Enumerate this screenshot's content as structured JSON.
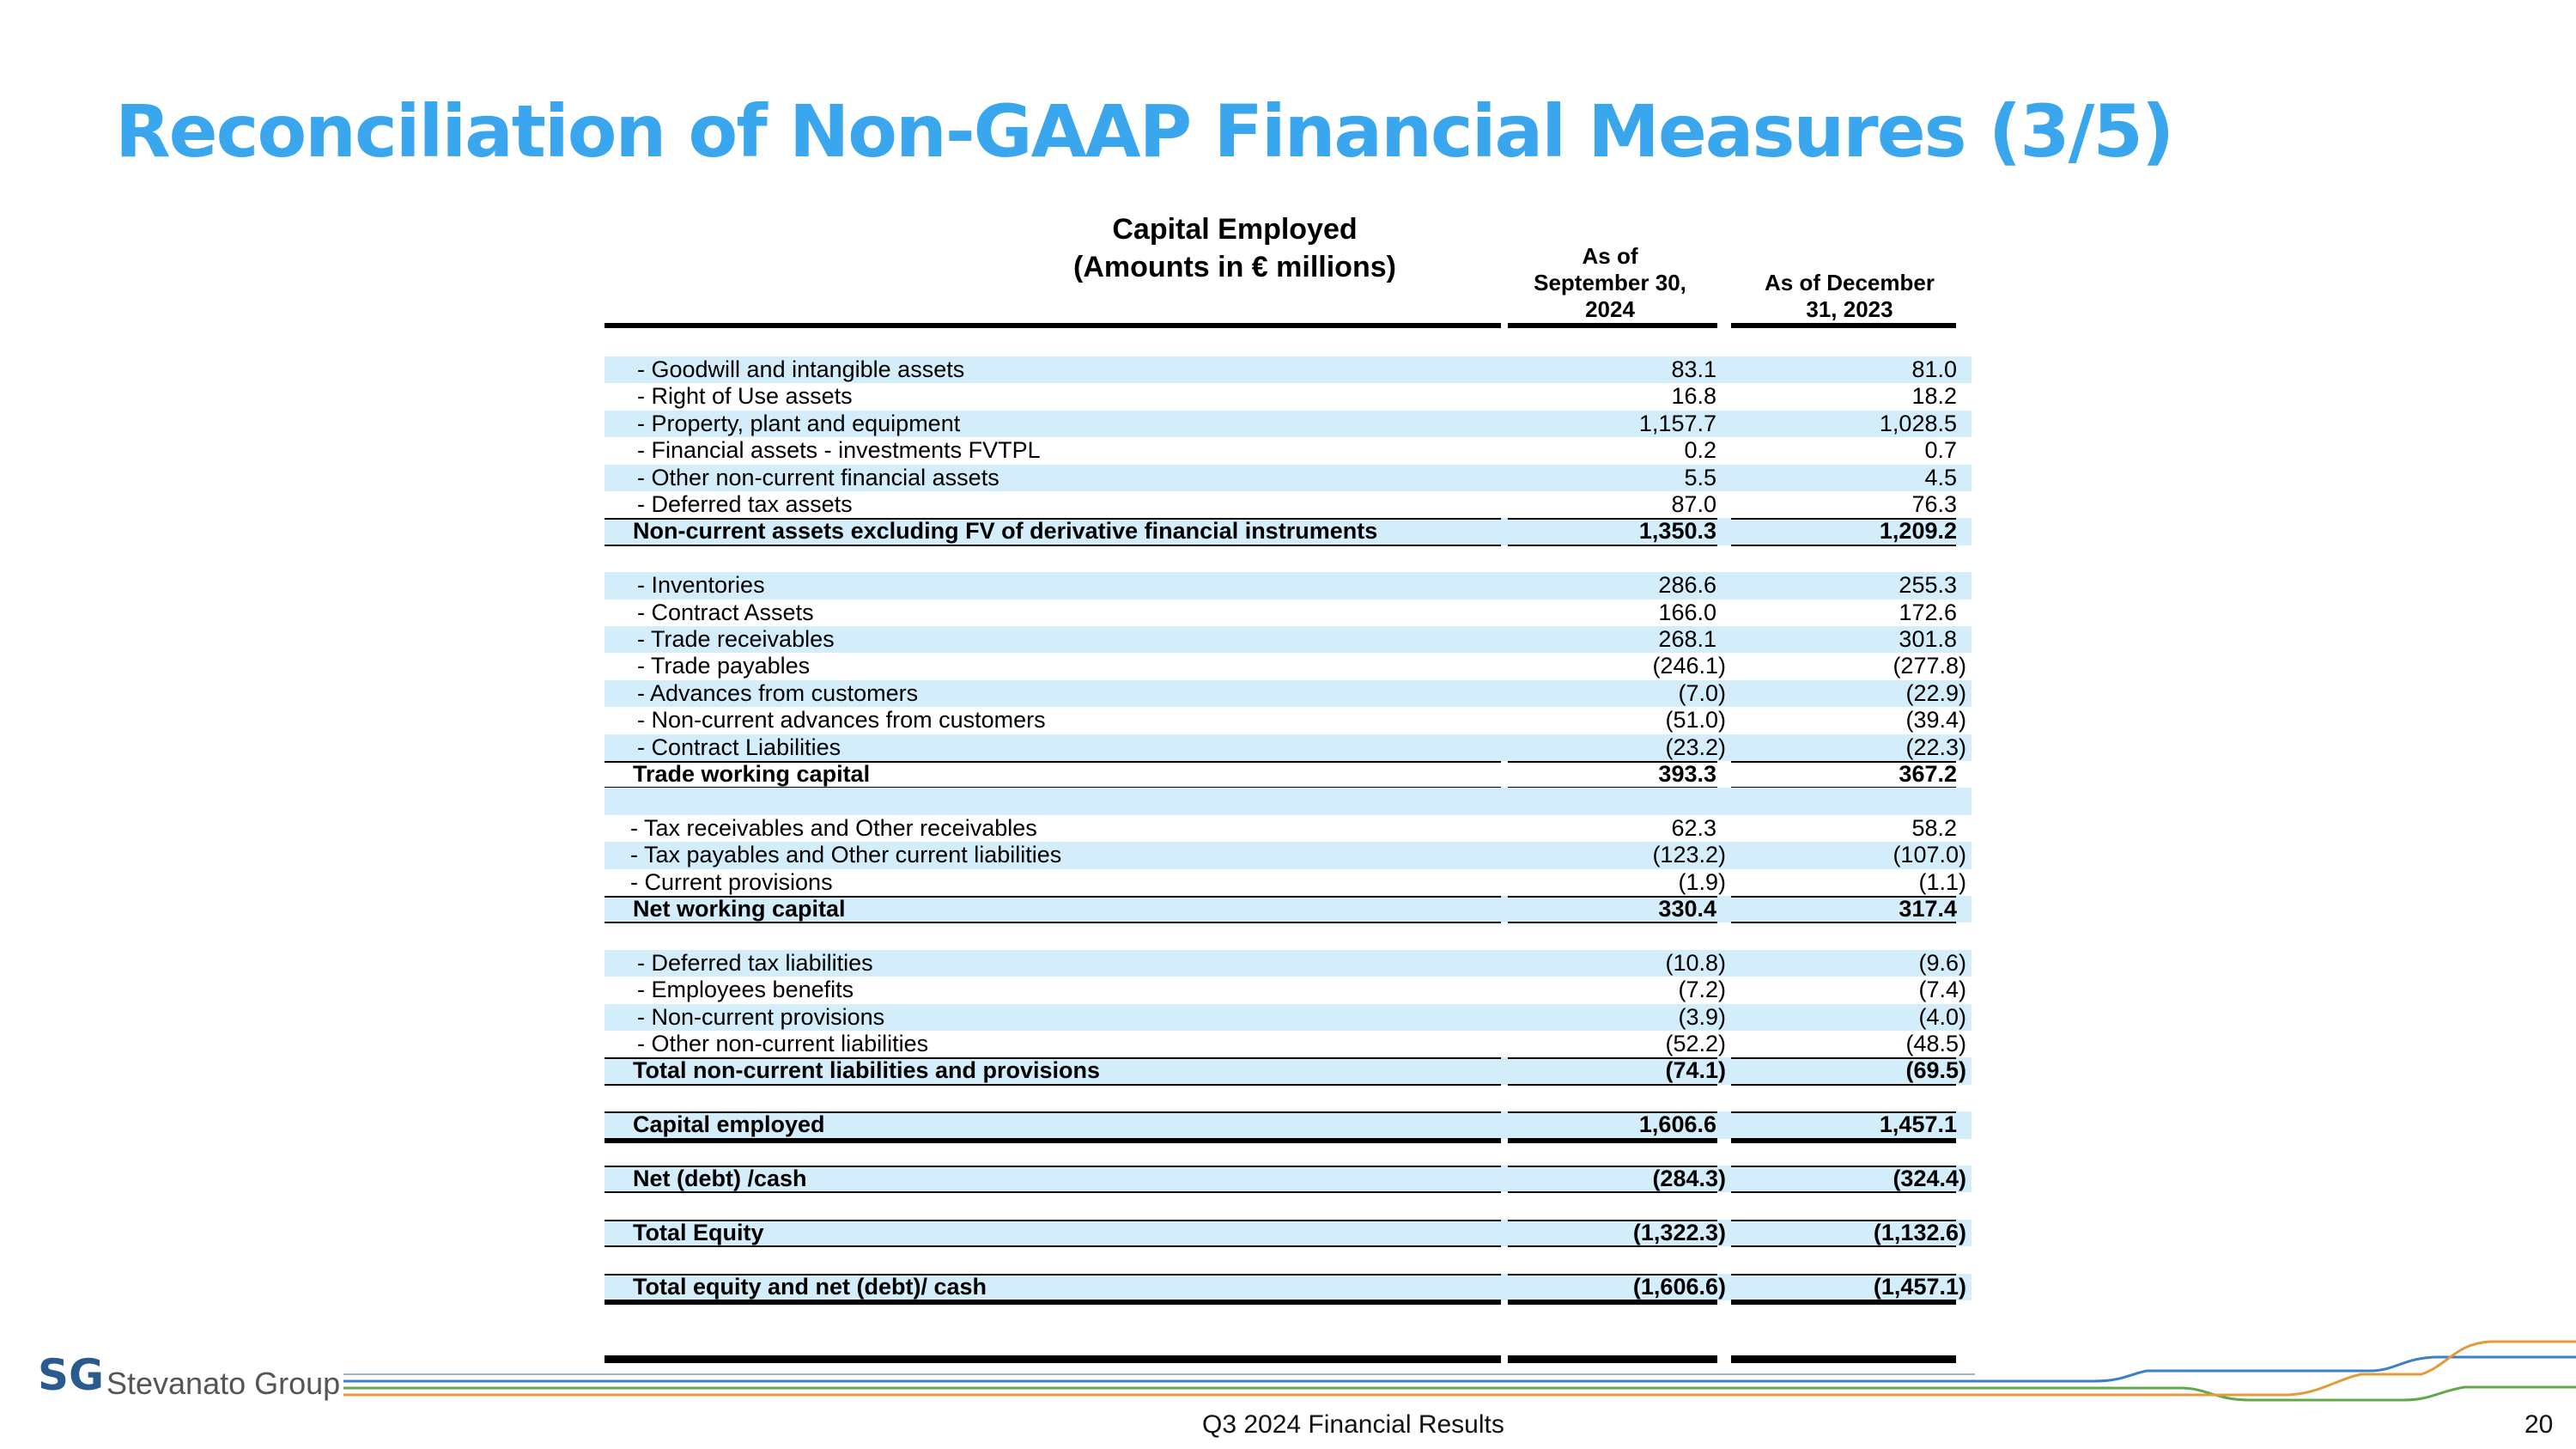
{
  "header": {
    "title": "Reconciliation of Non-GAAP Financial Measures (3/5)"
  },
  "table": {
    "title": "Capital Employed",
    "subtitle": "(Amounts in € millions)",
    "columns": [
      [
        "As of",
        "September 30,",
        "2024"
      ],
      [
        "As of December",
        "31, 2023"
      ]
    ],
    "sections": [
      {
        "rows": [
          {
            "label": "- Goodwill and intangible assets",
            "values": [
              "83.1",
              "81.0"
            ]
          },
          {
            "label": "- Right of Use assets",
            "values": [
              "16.8",
              "18.2"
            ]
          },
          {
            "label": "- Property, plant and equipment",
            "values": [
              "1,157.7",
              "1,028.5"
            ]
          },
          {
            "label": "- Financial assets - investments FVTPL",
            "values": [
              "0.2",
              "0.7"
            ]
          },
          {
            "label": "- Other non-current financial assets",
            "values": [
              "5.5",
              "4.5"
            ]
          },
          {
            "label": "- Deferred tax assets",
            "values": [
              "87.0",
              "76.3"
            ]
          }
        ],
        "total": {
          "label": "Non-current assets excluding FV of derivative financial instruments",
          "values": [
            "1,350.3",
            "1,209.2"
          ]
        }
      },
      {
        "rows": [
          {
            "label": "- Inventories",
            "values": [
              "286.6",
              "255.3"
            ]
          },
          {
            "label": "- Contract Assets",
            "values": [
              "166.0",
              "172.6"
            ]
          },
          {
            "label": "- Trade receivables",
            "values": [
              "268.1",
              "301.8"
            ]
          },
          {
            "label": "- Trade payables",
            "values": [
              "(246.1)",
              "(277.8)"
            ]
          },
          {
            "label": "- Advances from customers",
            "values": [
              "(7.0)",
              "(22.9)"
            ]
          },
          {
            "label": "- Non-current advances from customers",
            "values": [
              "(51.0)",
              "(39.4)"
            ]
          },
          {
            "label": "- Contract Liabilities",
            "values": [
              "(23.2)",
              "(22.3)"
            ]
          }
        ],
        "total": {
          "label": "Trade working capital",
          "values": [
            "393.3",
            "367.2"
          ]
        }
      },
      {
        "rows": [
          {
            "label": "- Tax receivables and Other receivables",
            "values": [
              "62.3",
              "58.2"
            ]
          },
          {
            "label": "- Tax payables and Other current liabilities",
            "values": [
              "(123.2)",
              "(107.0)"
            ]
          },
          {
            "label": "- Current provisions",
            "values": [
              "(1.9)",
              "(1.1)"
            ]
          }
        ],
        "total": {
          "label": "Net working capital",
          "values": [
            "330.4",
            "317.4"
          ]
        }
      },
      {
        "rows": [
          {
            "label": "- Deferred tax liabilities",
            "values": [
              "(10.8)",
              "(9.6)"
            ]
          },
          {
            "label": "- Employees benefits",
            "values": [
              "(7.2)",
              "(7.4)"
            ]
          },
          {
            "label": "- Non-current provisions",
            "values": [
              "(3.9)",
              "(4.0)"
            ]
          },
          {
            "label": "- Other non-current liabilities",
            "values": [
              "(52.2)",
              "(48.5)"
            ]
          }
        ],
        "total": {
          "label": "Total non-current liabilities and provisions",
          "values": [
            "(74.1)",
            "(69.5)"
          ]
        }
      },
      {
        "rows": [],
        "total": {
          "label": "Capital employed",
          "values": [
            "1,606.6",
            "1,457.1"
          ]
        }
      },
      {
        "rows": [],
        "total": {
          "label": "Net (debt) /cash",
          "values": [
            "(284.3)",
            "(324.4)"
          ]
        }
      },
      {
        "rows": [],
        "total": {
          "label": "Total Equity",
          "values": [
            "(1,322.3)",
            "(1,132.6)"
          ]
        }
      },
      {
        "rows": [],
        "total": {
          "label": "Total equity and net (debt)/ cash",
          "values": [
            "(1,606.6)",
            "(1,457.1)"
          ]
        }
      }
    ]
  },
  "footer": {
    "brand": "Stevanato Group",
    "logo": "SG",
    "caption": "Q3 2024 Financial Results",
    "page": "20"
  }
}
